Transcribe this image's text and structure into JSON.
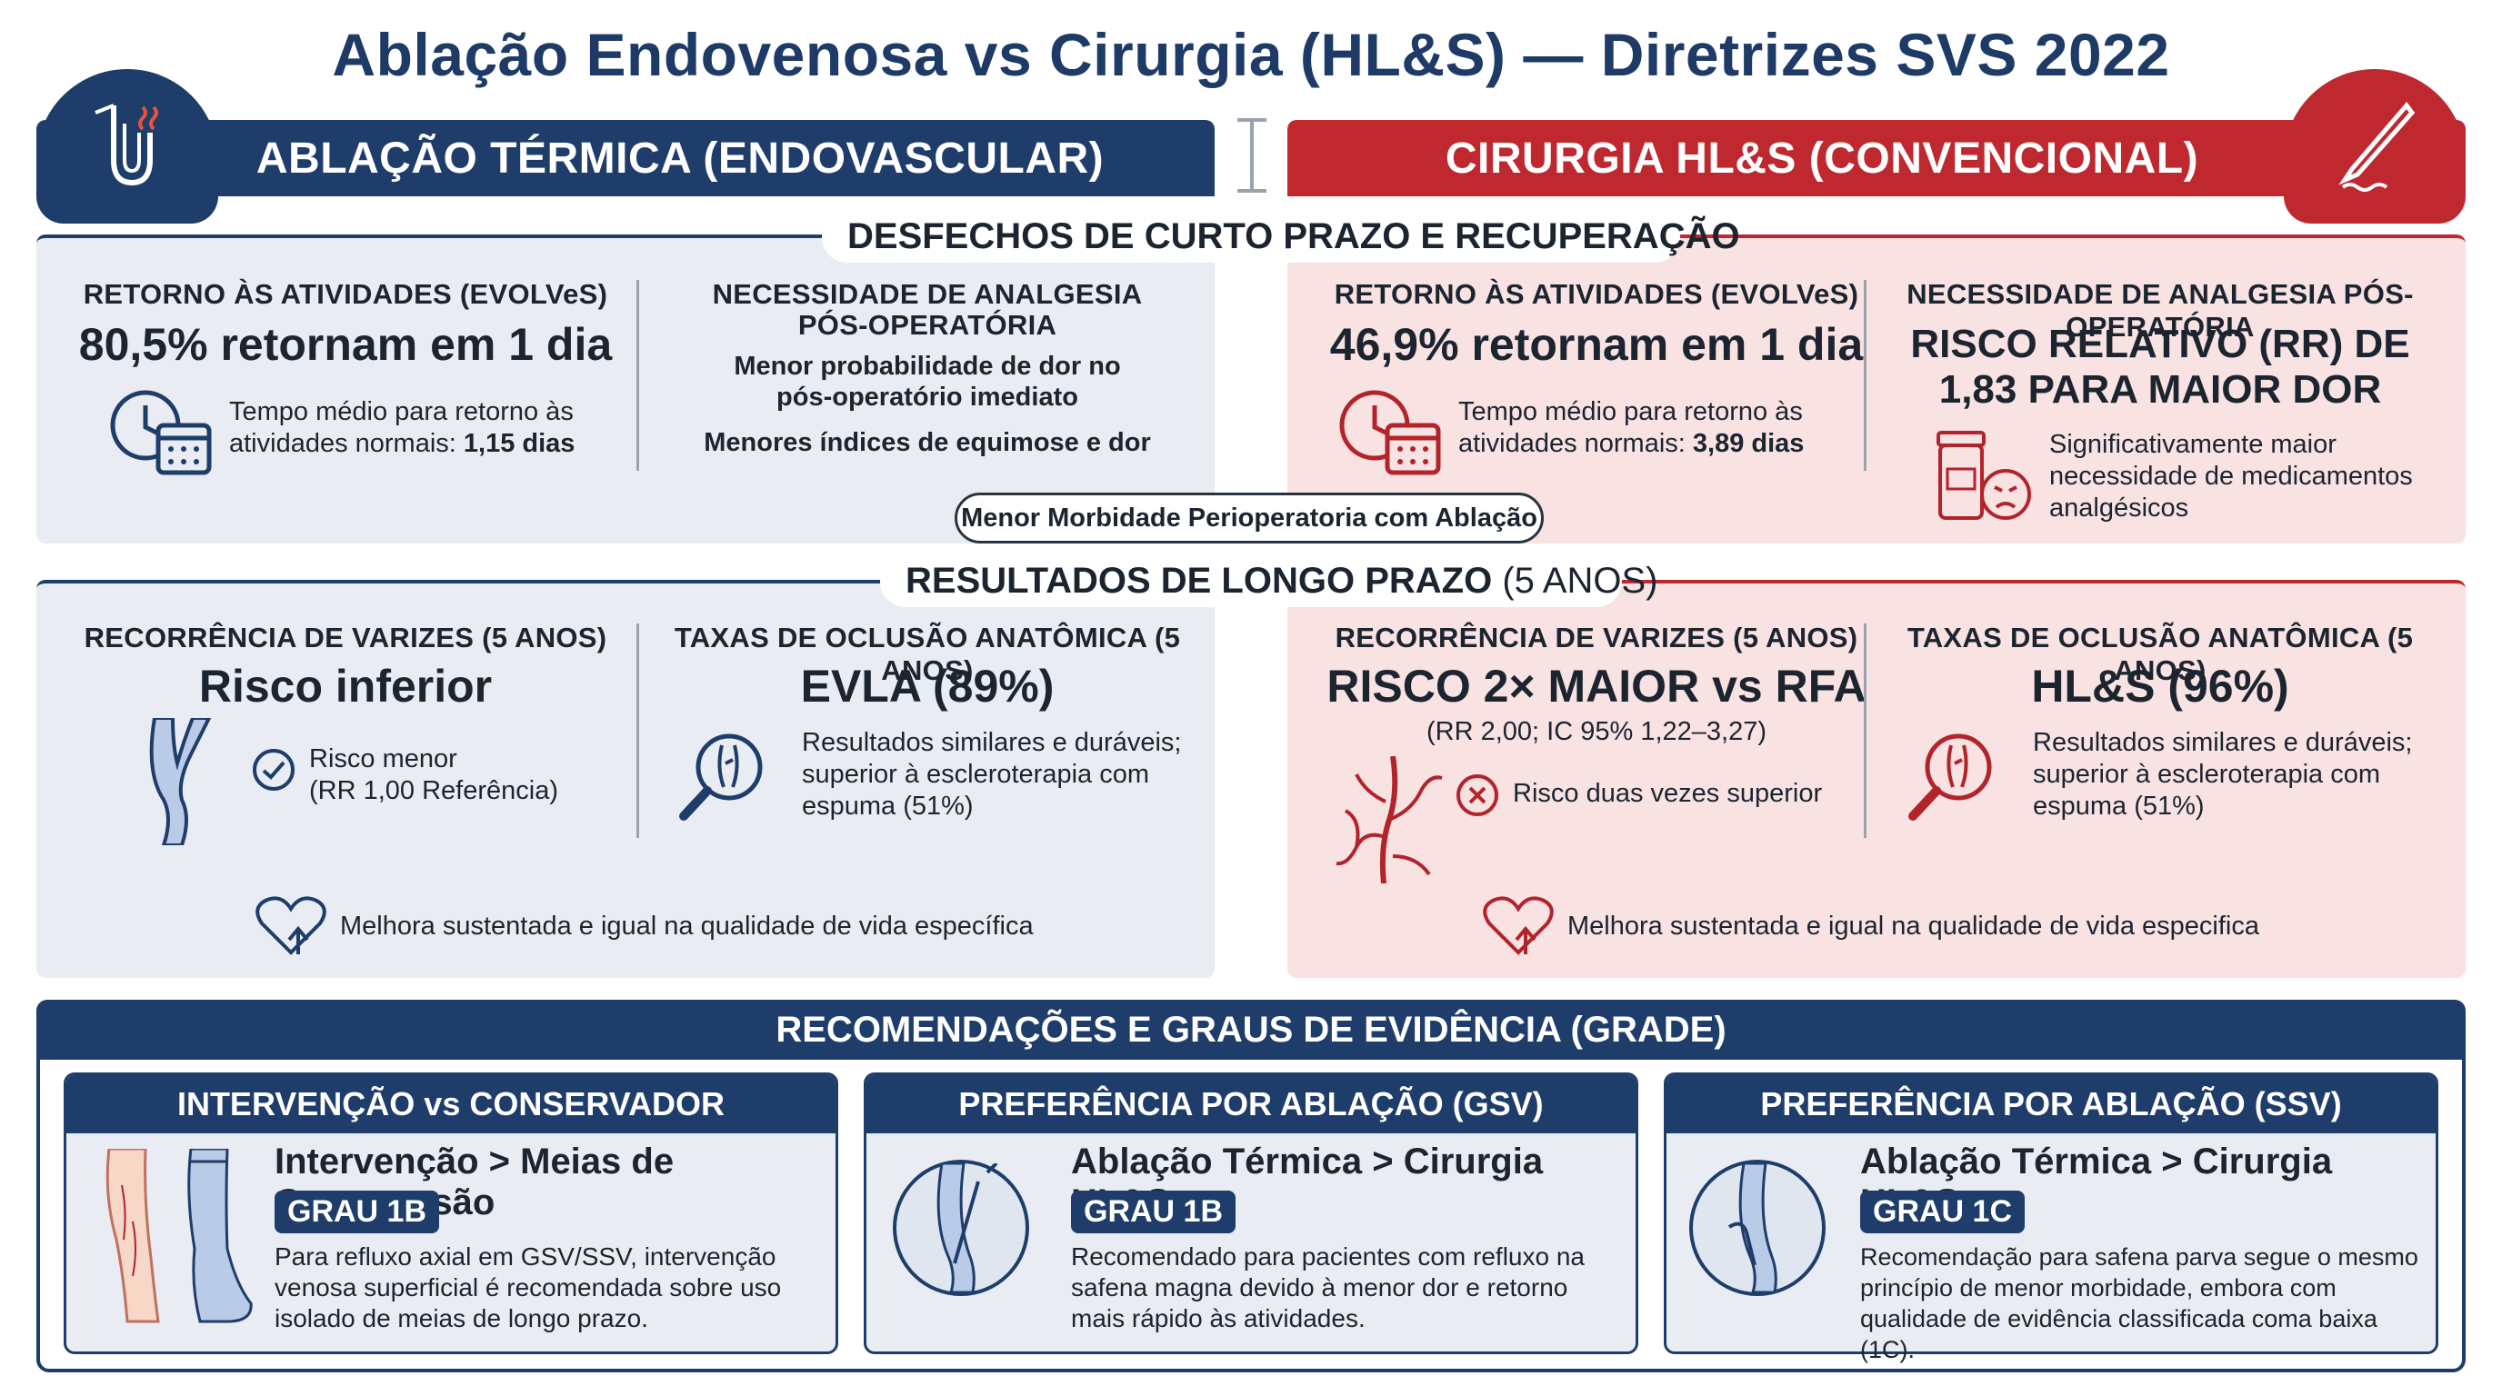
{
  "title": "Ablação Endovenosa vs Cirurgia (HL&S) — Diretrizes SVS 2022",
  "colors": {
    "navy": "#1f3d6b",
    "red": "#c0282f",
    "panel_blue": "#e9edf3",
    "panel_red": "#f8e2e2"
  },
  "left_header": {
    "label": "ABLAÇÃO TÉRMICA (ENDOVASCULAR)",
    "icon": "ablation-catheter-icon"
  },
  "right_header": {
    "label": "CIRURGIA HL&S (CONVENCIONAL)",
    "icon": "scalpel-icon"
  },
  "short_term": {
    "section_label": "DESFECHOS DE CURTO PRAZO E RECUPERAÇÃO",
    "left": {
      "return": {
        "label": "RETORNO ÀS ATIVIDADES (EVOLVeS)",
        "value": "80,5% retornam em 1 dia",
        "note": "Tempo médio para retorno às atividades normais:",
        "note_value": "1,15 dias",
        "icon": "clock-calendar-icon"
      },
      "analgesia": {
        "label_line1": "NECESSIDADE DE ANALGESIA",
        "label_line2": "PÓS-OPERATÓRIA",
        "line1": "Menor probabilidade de dor no",
        "line2": "pós-operatório imediato",
        "line3": "Menores índices de equimose e dor"
      }
    },
    "right": {
      "return": {
        "label": "RETORNO ÀS ATIVIDADES (EVOLVeS)",
        "value": "46,9% retornam em 1 dia",
        "note": "Tempo médio para retorno às atividades normais:",
        "note_value": "3,89 dias",
        "icon": "clock-calendar-icon"
      },
      "analgesia": {
        "label": "NECESSIDADE DE ANALGESIA PÓS-OPERATÓRIA",
        "value_line1": "RISCO RELATIVO (RR) DE",
        "value_line2": "1,83 PARA MAIOR DOR",
        "note_line1": "Significativamente maior",
        "note_line2": "necessidade de medicamentos",
        "note_line3": "analgésicos",
        "icon": "pill-bottle-pain-icon"
      }
    },
    "pill": "Menor Morbidade Perioperatoria com Ablação"
  },
  "long_term": {
    "section_label_bold": "RESULTADOS DE LONGO PRAZO",
    "section_label_light": " (5 ANOS)",
    "left": {
      "recurrence": {
        "label": "RECORRÊNCIA DE VARIZES (5 ANOS)",
        "value": "Risco inferior",
        "note_line1": "Risco menor",
        "note_line2": "(RR 1,00 Referência)",
        "icon": "check-circle-icon"
      },
      "occlusion": {
        "label": "TAXAS DE OCLUSÃO ANATÔMICA (5 ANOS)",
        "value": "EVLA (89%)",
        "note_line1": "Resultados similares e duráveis;",
        "note_line2": "superior à escleroterapia com",
        "note_line3": "espuma (51%)",
        "icon": "magnifier-vein-icon"
      },
      "qol": "Melhora sustentada e igual na qualidade de vida específica"
    },
    "right": {
      "recurrence": {
        "label": "RECORRÊNCIA DE VARIZES (5 ANOS)",
        "value": "RISCO 2× MAIOR vs RFA",
        "sub": "(RR 2,00; IC 95% 1,22–3,27)",
        "note": "Risco duas vezes superior",
        "icon": "x-circle-icon"
      },
      "occlusion": {
        "label": "TAXAS DE OCLUSÃO ANATÔMICA (5 ANOS)",
        "value": "HL&S (96%)",
        "note_line1": "Resultados similares e duráveis;",
        "note_line2": "superior à escleroterapia com",
        "note_line3": "espuma (51%)",
        "icon": "magnifier-vein-icon"
      },
      "qol": "Melhora sustentada e igual na qualidade de vida especifica"
    }
  },
  "recommendations": {
    "header": "RECOMENDAÇÕES E GRAUS DE EVIDÊNCIA (GRADE)",
    "cards": [
      {
        "head": "INTERVENÇÃO vs CONSERVADOR",
        "title": "Intervenção > Meias de Compressão",
        "grade": "GRAU 1B",
        "text_line1": "Para refluxo axial em GSV/SSV, intervenção",
        "text_line2": "venosa superficial é recomendada sobre uso",
        "text_line3": "isolado de meias de longo prazo.",
        "icon": "leg-stocking-icon"
      },
      {
        "head": "PREFERÊNCIA POR ABLAÇÃO (GSV)",
        "title": "Ablação Térmica > Cirurgia HL&S",
        "grade": "GRAU 1B",
        "text_line1": "Recomendado para pacientes com refluxo na",
        "text_line2": "safena magna devido à menor dor e retorno",
        "text_line3": "mais rápido às atividades.",
        "icon": "catheter-vein-icon"
      },
      {
        "head": "PREFERÊNCIA POR ABLAÇÃO (SSV)",
        "title": "Ablação Térmica > Cirurgia HL&S",
        "grade": "GRAU 1C",
        "text_line1": "Recomendação para safena parva segue o mesmo",
        "text_line2": "princípio de menor morbidade, embora com",
        "text_line3": "qualidade de evidência classificada coma baixa (1C).",
        "icon": "catheter-vein-icon"
      }
    ]
  }
}
